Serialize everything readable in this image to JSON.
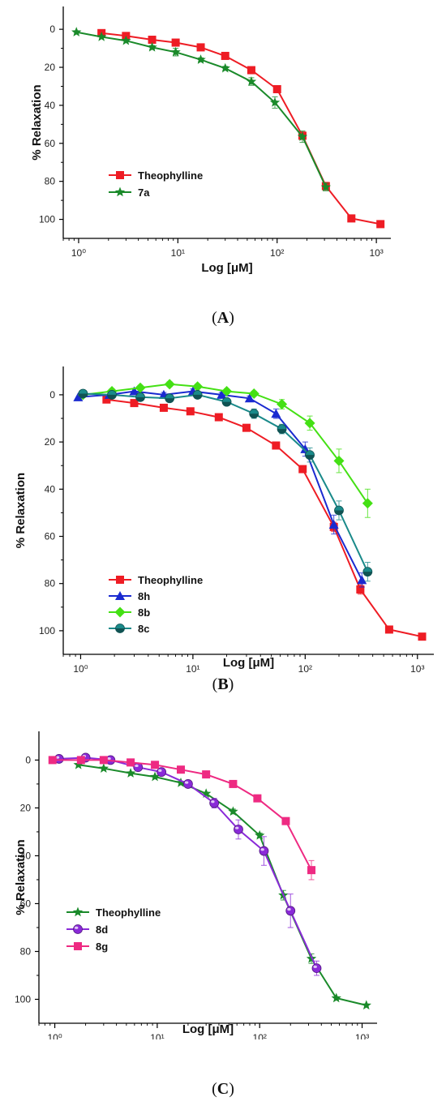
{
  "chart_data": [
    {
      "type": "line",
      "panel": "A",
      "xlabel": "Log [μM]",
      "ylabel": "% Relaxation",
      "xscale": "log",
      "xlim": [
        0.7,
        1400
      ],
      "ylim": [
        -12,
        110
      ],
      "y_inverted": true,
      "yticks": [
        0,
        20,
        40,
        60,
        80,
        100
      ],
      "xticks": [
        {
          "value": 1,
          "label": "10⁰"
        },
        {
          "value": 10,
          "label": "10¹"
        },
        {
          "value": 100,
          "label": "10²"
        },
        {
          "value": 1000,
          "label": "10³"
        }
      ],
      "legend_position": "lower-left",
      "series": [
        {
          "name": "Theophylline",
          "color": "#ee1c24",
          "marker": "square",
          "x": [
            1.7,
            3,
            5.5,
            9.5,
            17,
            30,
            55,
            100,
            180,
            310,
            560,
            1100
          ],
          "y": [
            2,
            3.5,
            5.5,
            7,
            9.5,
            14,
            21.5,
            31.5,
            56,
            82.5,
            99.5,
            102.5
          ],
          "err": [
            0,
            0,
            0,
            0,
            0,
            0,
            1,
            1,
            2,
            2,
            0,
            0
          ]
        },
        {
          "name": "7a",
          "color": "#1a8a2a",
          "marker": "star",
          "x": [
            0.95,
            1.7,
            3,
            5.5,
            9.5,
            17,
            30,
            55,
            95,
            180,
            310
          ],
          "y": [
            1.5,
            4,
            6,
            9.5,
            12,
            16,
            20.5,
            27.5,
            38.5,
            56.5,
            83
          ],
          "err": [
            0,
            0,
            0,
            1,
            2,
            1,
            1,
            2,
            3,
            3,
            2
          ]
        }
      ]
    },
    {
      "type": "line",
      "panel": "B",
      "xlabel": "Log [μM]",
      "ylabel": "% Relaxation",
      "xscale": "log",
      "xlim": [
        0.7,
        1400
      ],
      "ylim": [
        -12,
        110
      ],
      "y_inverted": true,
      "yticks": [
        0,
        20,
        40,
        60,
        80,
        100
      ],
      "xticks": [
        {
          "value": 1,
          "label": "10⁰"
        },
        {
          "value": 10,
          "label": "10¹"
        },
        {
          "value": 100,
          "label": "10²"
        },
        {
          "value": 1000,
          "label": "10³"
        }
      ],
      "legend_position": "lower-left",
      "series": [
        {
          "name": "Theophylline",
          "color": "#ee1c24",
          "marker": "square",
          "x": [
            1.7,
            3,
            5.5,
            9.5,
            17,
            30,
            55,
            95,
            180,
            310,
            560,
            1100
          ],
          "y": [
            2,
            3.5,
            5.5,
            7,
            9.5,
            14,
            21.5,
            31.5,
            56,
            82.5,
            99.5,
            102.5
          ],
          "err": [
            0,
            0,
            0,
            0,
            0,
            0,
            1,
            1,
            2,
            2,
            0,
            0
          ]
        },
        {
          "name": "8h",
          "color": "#1a2ad0",
          "marker": "triangle",
          "x": [
            0.95,
            1.8,
            3,
            5.5,
            10,
            18,
            32,
            55,
            100,
            180,
            320
          ],
          "y": [
            1,
            0,
            -1.5,
            0,
            -1.5,
            0,
            1.5,
            8,
            23,
            55,
            78.5
          ],
          "err": [
            0,
            0,
            1,
            1,
            1,
            1,
            1,
            2,
            3,
            4,
            3
          ]
        },
        {
          "name": "8b",
          "color": "#44e014",
          "marker": "diamond",
          "x": [
            1.05,
            1.9,
            3.4,
            6.2,
            11,
            20,
            35,
            62,
            110,
            200,
            360
          ],
          "y": [
            0,
            -1.5,
            -3,
            -4.5,
            -3.5,
            -1.5,
            -0.5,
            4,
            12,
            28,
            46
          ],
          "err": [
            0,
            1,
            1,
            1,
            1,
            1,
            1,
            2,
            3,
            5,
            6
          ]
        },
        {
          "name": "8c",
          "color": "#1a8a8a",
          "marker": "circle",
          "x": [
            1.05,
            1.9,
            3.4,
            6.2,
            11,
            20,
            35,
            62,
            110,
            200,
            360
          ],
          "y": [
            -0.5,
            0,
            1,
            1.5,
            0,
            3,
            8,
            14.5,
            25.5,
            49,
            75
          ],
          "err": [
            0,
            0,
            1,
            1,
            1,
            1,
            2,
            2,
            3,
            4,
            4
          ]
        }
      ]
    },
    {
      "type": "line",
      "panel": "C",
      "xlabel": "Log [μM]",
      "ylabel": "% Relaxation",
      "xscale": "log",
      "xlim": [
        0.7,
        1400
      ],
      "ylim": [
        -12,
        110
      ],
      "y_inverted": true,
      "yticks": [
        0,
        20,
        40,
        60,
        80,
        100
      ],
      "xticks": [
        {
          "value": 1,
          "label": "10⁰"
        },
        {
          "value": 10,
          "label": "10¹"
        },
        {
          "value": 100,
          "label": "10²"
        },
        {
          "value": 1000,
          "label": "10³"
        }
      ],
      "legend_position": "lower-left",
      "series": [
        {
          "name": "Theophylline",
          "color": "#1a8a2a",
          "marker": "star",
          "x": [
            1.7,
            3,
            5.5,
            9.5,
            17,
            30,
            55,
            100,
            170,
            320,
            560,
            1100
          ],
          "y": [
            2,
            3.5,
            5.5,
            7,
            9.5,
            14,
            21.5,
            31.5,
            56.5,
            83,
            99.5,
            102.5
          ],
          "err": [
            0,
            0,
            0,
            0,
            0,
            0,
            1,
            1,
            2,
            2,
            0,
            0
          ]
        },
        {
          "name": "8d",
          "color": "#8a2ad8",
          "marker": "sphere",
          "x": [
            1.1,
            2,
            3.5,
            6.5,
            11,
            20,
            36,
            62,
            110,
            200,
            360
          ],
          "y": [
            -0.5,
            -1,
            0,
            3,
            5,
            10,
            18,
            29,
            38,
            63,
            87
          ],
          "err": [
            0,
            0,
            1,
            1,
            1,
            1,
            2,
            4,
            6,
            7,
            3
          ]
        },
        {
          "name": "8g",
          "color": "#ee2a82",
          "marker": "square",
          "x": [
            0.95,
            1.8,
            3,
            5.5,
            9.5,
            17,
            30,
            55,
            95,
            180,
            320
          ],
          "y": [
            0,
            0,
            0,
            1,
            2,
            4,
            6,
            10,
            16,
            25.5,
            46
          ],
          "err": [
            0,
            0,
            0,
            0,
            0,
            0,
            0,
            1,
            1,
            1,
            4
          ]
        }
      ]
    }
  ],
  "captions": [
    "A",
    "B",
    "C"
  ]
}
